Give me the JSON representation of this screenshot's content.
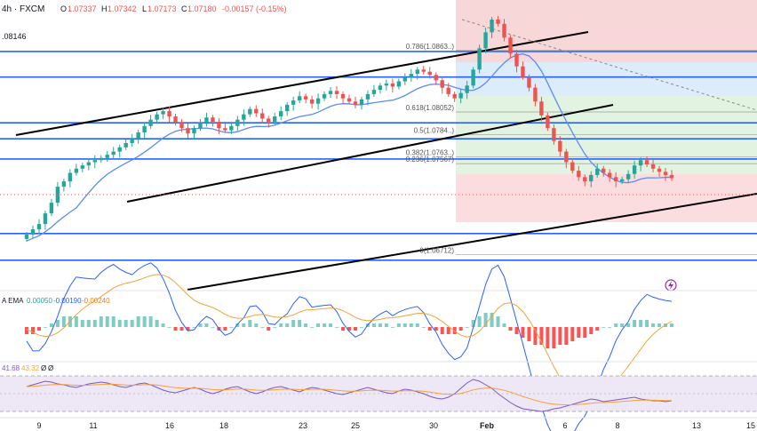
{
  "header": {
    "symbol": "4h · FXCM",
    "ohlc_prefix": "O",
    "open": "1.07337",
    "high_prefix": "H",
    "high": "1.07342",
    "low_prefix": "L",
    "low": "1.07173",
    "close_prefix": "C",
    "close": "1.07180",
    "change": "-0.00157 (-0.15%)",
    "side_value": ".08146"
  },
  "fib_labels": [
    {
      "text": "0.786(1.0863..)",
      "price": 1.0863
    },
    {
      "text": "0.618(1.08052)",
      "price": 1.08052
    },
    {
      "text": "0.5(1.0784..)",
      "price": 1.0784
    },
    {
      "text": "0.382(1.0763..)",
      "price": 1.0763
    },
    {
      "text": "0.236(1.07567)",
      "price": 1.07567
    },
    {
      "text": "0(1.06712)",
      "price": 1.06712
    }
  ],
  "macd_legend": {
    "label": "A EMA",
    "v1": "0.00050",
    "v2": "-0.00190",
    "v3": "-0.00240"
  },
  "rsi_legend": {
    "v1": "41.68",
    "v2": "43.32",
    "v3": "Ø",
    "v4": "Ø"
  },
  "x_ticks": [
    "9",
    "11",
    "16",
    "18",
    "23",
    "25",
    "30",
    "Feb",
    "6",
    "8",
    "13",
    "15"
  ],
  "colors": {
    "bull": "#26a69a",
    "bear": "#ef5350",
    "hline": "#2962ff",
    "trend": "#000000",
    "ma": "#5b8def",
    "signal": "#f4a236",
    "rsi": "#7e57c2"
  },
  "icons": {
    "bolt": "lightning-icon"
  },
  "chart_data": {
    "type": "candlestick",
    "x": [
      "9",
      "11",
      "16",
      "18",
      "23",
      "25",
      "30",
      "Feb",
      "6",
      "8",
      "13",
      "15"
    ],
    "horizontal_levels": [
      1.0862,
      1.0838,
      1.0795,
      1.078,
      1.0761,
      1.0691,
      1.0666
    ],
    "fib_retracement": {
      "0": 1.06712,
      "0.236": 1.07567,
      "0.382": 1.0763,
      "0.5": 1.0784,
      "0.618": 1.08052,
      "0.786": 1.0863
    },
    "last_close": 1.0718,
    "close_series": [
      1.069,
      1.0695,
      1.07,
      1.071,
      1.072,
      1.0735,
      1.074,
      1.0748,
      1.0752,
      1.0755,
      1.0758,
      1.076,
      1.0762,
      1.0765,
      1.0768,
      1.0772,
      1.0776,
      1.078,
      1.0786,
      1.0792,
      1.0798,
      1.0803,
      1.0806,
      1.0801,
      1.0795,
      1.079,
      1.0785,
      1.079,
      1.0795,
      1.08,
      1.0796,
      1.079,
      1.0788,
      1.0792,
      1.0798,
      1.0803,
      1.0808,
      1.0804,
      1.0799,
      1.0796,
      1.0801,
      1.0806,
      1.0812,
      1.0816,
      1.082,
      1.0817,
      1.0813,
      1.0818,
      1.0822,
      1.0825,
      1.0822,
      1.0818,
      1.0815,
      1.0812,
      1.0817,
      1.0822,
      1.0826,
      1.083,
      1.0832,
      1.0829,
      1.0834,
      1.0838,
      1.0841,
      1.0845,
      1.0843,
      1.084,
      1.0835,
      1.0828,
      1.0822,
      1.0818,
      1.0823,
      1.083,
      1.0845,
      1.0865,
      1.088,
      1.0892,
      1.0888,
      1.0875,
      1.086,
      1.0848,
      1.0838,
      1.0828,
      1.0815,
      1.0802,
      1.079,
      1.0778,
      1.0768,
      1.0758,
      1.075,
      1.0744,
      1.074,
      1.0746,
      1.0752,
      1.0748,
      1.0744,
      1.074,
      1.0742,
      1.0747,
      1.0755,
      1.076,
      1.0756,
      1.0752,
      1.0749,
      1.0746,
      1.0743
    ],
    "macd_hist": [
      -0.0002,
      -0.0002,
      -0.0001,
      0.0,
      0.0001,
      0.0002,
      0.0003,
      0.0003,
      0.0003,
      0.0002,
      0.0002,
      0.0002,
      0.0003,
      0.0003,
      0.0003,
      0.0002,
      0.0002,
      0.0002,
      0.0003,
      0.0003,
      0.0003,
      0.0002,
      0.0001,
      0.0,
      -0.0001,
      -0.0001,
      -0.0001,
      0.0,
      0.0001,
      0.0001,
      0.0,
      -0.0001,
      -0.0001,
      0.0,
      0.0001,
      0.0001,
      0.0002,
      0.0001,
      0.0,
      -0.0001,
      0.0,
      0.0001,
      0.0001,
      0.0002,
      0.0002,
      0.0001,
      0.0,
      0.0001,
      0.0001,
      0.0001,
      0.0,
      -0.0001,
      -0.0001,
      -0.0001,
      0.0,
      0.0001,
      0.0001,
      0.0001,
      0.0001,
      0.0,
      0.0001,
      0.0001,
      0.0001,
      0.0001,
      0.0,
      -0.0001,
      -0.0001,
      -0.0002,
      -0.0002,
      -0.0002,
      -0.0001,
      0.0,
      0.0002,
      0.0003,
      0.0004,
      0.0004,
      0.0003,
      0.0001,
      -0.0001,
      -0.0002,
      -0.0003,
      -0.0004,
      -0.0005,
      -0.0005,
      -0.0006,
      -0.0006,
      -0.0005,
      -0.0005,
      -0.0004,
      -0.0003,
      -0.0003,
      -0.0002,
      -0.0001,
      0.0,
      0.0,
      0.0001,
      0.0001,
      0.0001,
      0.0002,
      0.0002,
      0.0002,
      0.0001,
      0.0001,
      0.0001,
      0.0001
    ],
    "rsi": [
      58,
      60,
      62,
      64,
      63,
      61,
      60,
      58,
      57,
      59,
      61,
      62,
      63,
      62,
      60,
      58,
      57,
      59,
      61,
      62,
      60,
      57,
      54,
      52,
      51,
      53,
      55,
      57,
      55,
      52,
      50,
      52,
      55,
      57,
      58,
      55,
      52,
      50,
      52,
      55,
      57,
      58,
      56,
      54,
      52,
      55,
      57,
      56,
      54,
      52,
      50,
      49,
      51,
      53,
      55,
      57,
      55,
      53,
      51,
      50,
      53,
      55,
      54,
      52,
      50,
      47,
      45,
      44,
      46,
      50,
      56,
      62,
      66,
      64,
      60,
      56,
      50,
      45,
      40,
      36,
      33,
      32,
      31,
      30,
      31,
      33,
      34,
      36,
      38,
      40,
      42,
      44,
      43,
      41,
      42,
      43,
      44,
      45,
      46,
      44,
      43,
      42,
      42,
      41,
      42
    ]
  }
}
